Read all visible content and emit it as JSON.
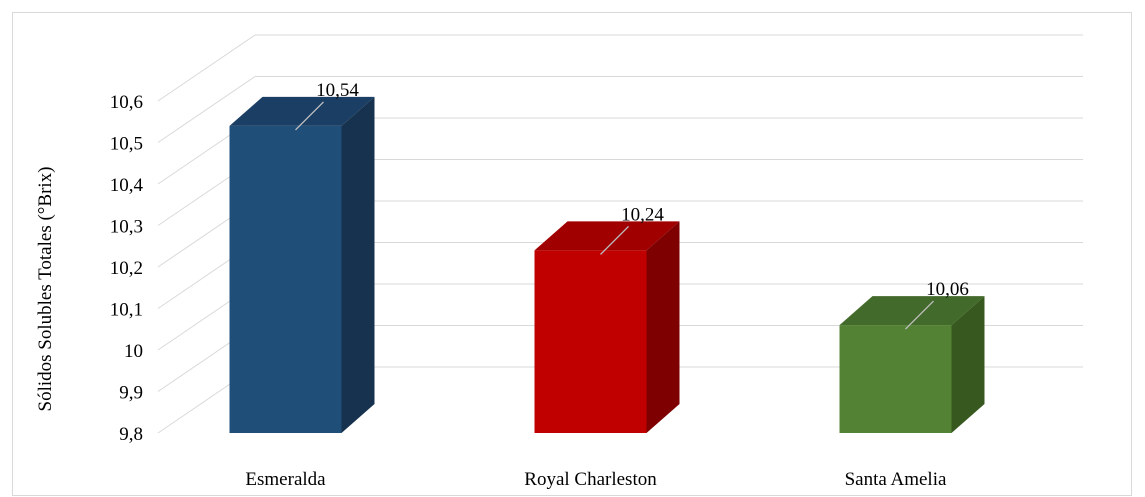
{
  "chart_data": {
    "type": "bar",
    "style": "3d-column",
    "categories": [
      "Esmeralda",
      "Royal Charleston",
      "Santa Amelia"
    ],
    "values": [
      10.54,
      10.24,
      10.06
    ],
    "data_labels": [
      "10,54",
      "10,24",
      "10,06"
    ],
    "ylabel": "Sólidos Solubles Totales (°Brix)",
    "xlabel": "",
    "ylim": [
      9.8,
      10.6
    ],
    "yticks": [
      9.8,
      9.9,
      10.0,
      10.1,
      10.2,
      10.3,
      10.4,
      10.5,
      10.6
    ],
    "ytick_labels": [
      "9,8",
      "9,9",
      "10",
      "10,1",
      "10,2",
      "10,3",
      "10,4",
      "10,5",
      "10,6"
    ],
    "grid": true,
    "legend": "none",
    "colors": {
      "front": [
        "#1F4E79",
        "#C00000",
        "#548235"
      ],
      "top": [
        "#1B3F64",
        "#A00000",
        "#426A2A"
      ],
      "side": [
        "#17324F",
        "#7E0000",
        "#37591F"
      ],
      "grid": "#d9d9d9"
    }
  }
}
